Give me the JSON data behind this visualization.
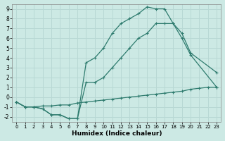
{
  "xlabel": "Humidex (Indice chaleur)",
  "background_color": "#cce9e4",
  "grid_color": "#b8d8d4",
  "line_color": "#2e7b6e",
  "xlim": [
    -0.5,
    23.5
  ],
  "ylim": [
    -2.5,
    9.5
  ],
  "xticks": [
    0,
    1,
    2,
    3,
    4,
    5,
    6,
    7,
    8,
    9,
    10,
    11,
    12,
    13,
    14,
    15,
    16,
    17,
    18,
    19,
    20,
    21,
    22,
    23
  ],
  "yticks": [
    -2,
    -1,
    0,
    1,
    2,
    3,
    4,
    5,
    6,
    7,
    8,
    9
  ],
  "line1_x": [
    0,
    1,
    2,
    3,
    4,
    5,
    6,
    7,
    8,
    9,
    10,
    11,
    12,
    13,
    14,
    15,
    16,
    17,
    18,
    19,
    20,
    21,
    22,
    23
  ],
  "line1_y": [
    -0.5,
    -1.0,
    -1.0,
    -0.9,
    -0.9,
    -0.8,
    -0.8,
    -0.6,
    -0.5,
    -0.4,
    -0.3,
    -0.2,
    -0.1,
    0.0,
    0.1,
    0.2,
    0.3,
    0.4,
    0.5,
    0.6,
    0.8,
    0.9,
    1.0,
    1.0
  ],
  "line2_x": [
    0,
    1,
    2,
    3,
    4,
    5,
    6,
    7,
    8,
    9,
    10,
    11,
    12,
    13,
    14,
    15,
    16,
    17,
    18,
    19,
    20,
    23
  ],
  "line2_y": [
    -0.5,
    -1.0,
    -1.0,
    -1.2,
    -1.8,
    -1.8,
    -2.2,
    -2.2,
    1.5,
    1.5,
    2.0,
    3.0,
    4.0,
    5.0,
    6.0,
    6.5,
    7.5,
    7.5,
    7.5,
    6.0,
    4.3,
    1.0
  ],
  "line3_x": [
    0,
    1,
    2,
    3,
    4,
    5,
    6,
    7,
    8,
    9,
    10,
    11,
    12,
    13,
    14,
    15,
    16,
    17,
    18,
    19,
    20,
    23
  ],
  "line3_y": [
    -0.5,
    -1.0,
    -1.0,
    -1.2,
    -1.8,
    -1.8,
    -2.2,
    -2.2,
    3.5,
    4.0,
    5.0,
    6.5,
    7.5,
    8.0,
    8.5,
    9.2,
    9.0,
    9.0,
    7.5,
    6.5,
    4.5,
    2.5
  ]
}
